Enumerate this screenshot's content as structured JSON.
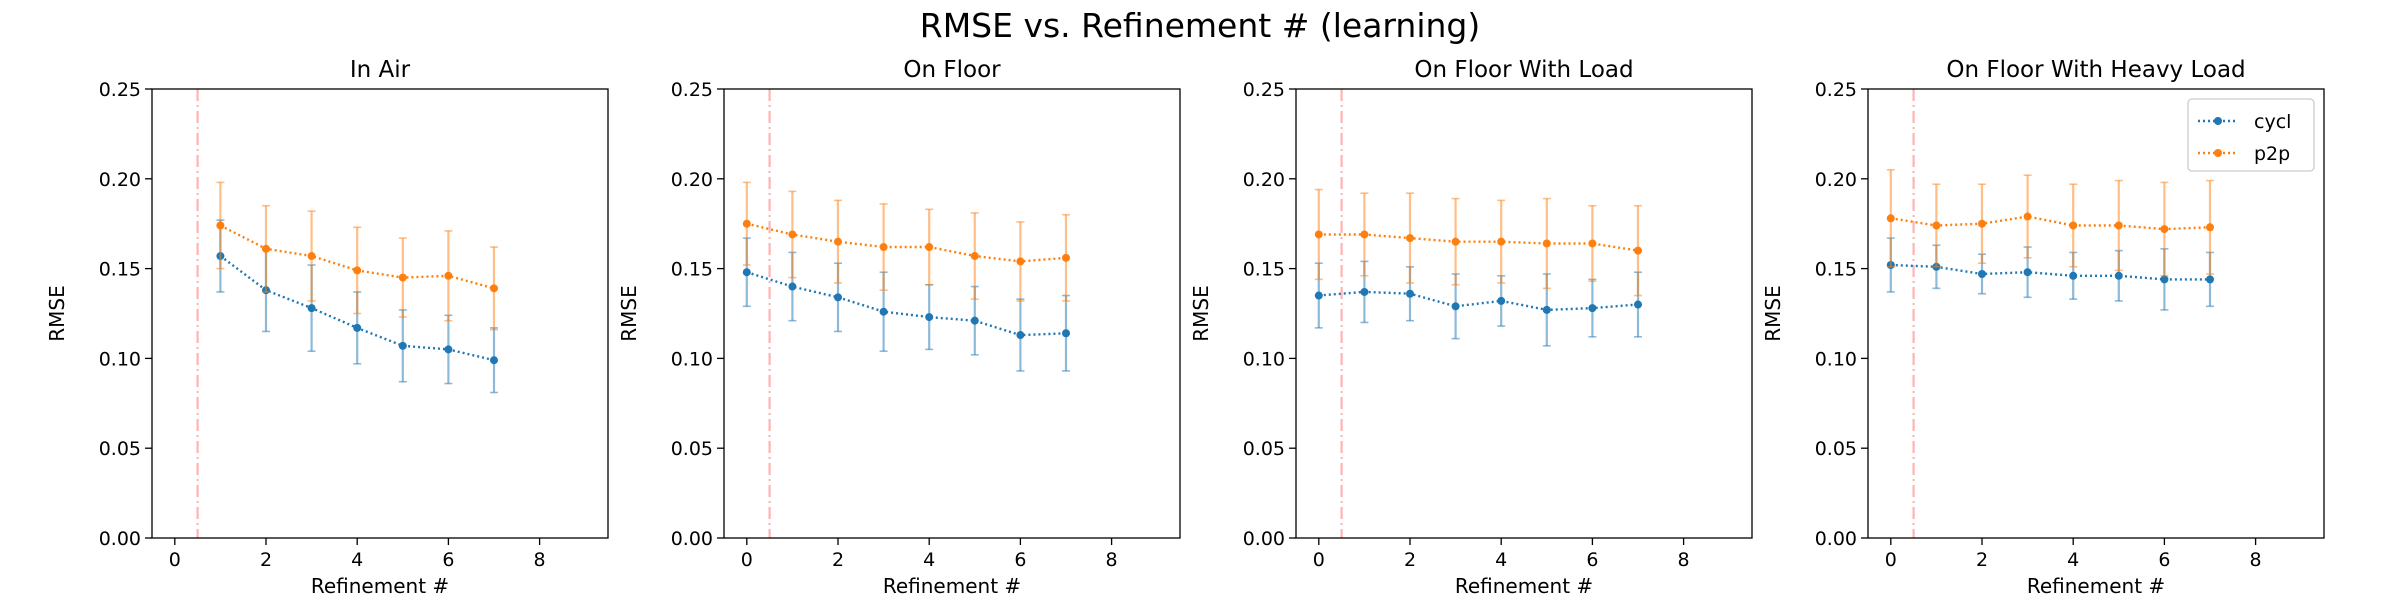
{
  "figure": {
    "title": "RMSE vs. Refinement # (learning)"
  },
  "colors": {
    "cycl": "#1f77b4",
    "p2p": "#ff7f0e",
    "vline": "#ffb3b3"
  },
  "chart_data": [
    {
      "type": "line",
      "title": "In Air",
      "xlabel": "Refinement #",
      "ylabel": "RMSE",
      "xlim": [
        -0.5,
        9.5
      ],
      "ylim": [
        0,
        0.25
      ],
      "xticks": [
        0,
        2,
        4,
        6,
        8
      ],
      "yticks": [
        0.0,
        0.05,
        0.1,
        0.15,
        0.2,
        0.25
      ],
      "vline_x": 0.5,
      "grid": false,
      "legend": null,
      "series": [
        {
          "name": "cycl",
          "x": [
            1,
            2,
            3,
            4,
            5,
            6,
            7
          ],
          "y": [
            0.157,
            0.138,
            0.128,
            0.117,
            0.107,
            0.105,
            0.099
          ],
          "err": [
            0.02,
            0.023,
            0.024,
            0.02,
            0.02,
            0.019,
            0.018
          ]
        },
        {
          "name": "p2p",
          "x": [
            1,
            2,
            3,
            4,
            5,
            6,
            7
          ],
          "y": [
            0.174,
            0.161,
            0.157,
            0.149,
            0.145,
            0.146,
            0.139
          ],
          "err": [
            0.024,
            0.024,
            0.025,
            0.024,
            0.022,
            0.025,
            0.023
          ]
        }
      ]
    },
    {
      "type": "line",
      "title": "On Floor",
      "xlabel": "Refinement #",
      "ylabel": "RMSE",
      "xlim": [
        -0.5,
        9.5
      ],
      "ylim": [
        0,
        0.25
      ],
      "xticks": [
        0,
        2,
        4,
        6,
        8
      ],
      "yticks": [
        0.0,
        0.05,
        0.1,
        0.15,
        0.2,
        0.25
      ],
      "vline_x": 0.5,
      "grid": false,
      "legend": null,
      "series": [
        {
          "name": "cycl",
          "x": [
            0,
            1,
            2,
            3,
            4,
            5,
            6,
            7
          ],
          "y": [
            0.148,
            0.14,
            0.134,
            0.126,
            0.123,
            0.121,
            0.113,
            0.114
          ],
          "err": [
            0.019,
            0.019,
            0.019,
            0.022,
            0.018,
            0.019,
            0.02,
            0.021
          ]
        },
        {
          "name": "p2p",
          "x": [
            0,
            1,
            2,
            3,
            4,
            5,
            6,
            7
          ],
          "y": [
            0.175,
            0.169,
            0.165,
            0.162,
            0.162,
            0.157,
            0.154,
            0.156
          ],
          "err": [
            0.023,
            0.024,
            0.023,
            0.024,
            0.021,
            0.024,
            0.022,
            0.024
          ]
        }
      ]
    },
    {
      "type": "line",
      "title": "On Floor With Load",
      "xlabel": "Refinement #",
      "ylabel": "RMSE",
      "xlim": [
        -0.5,
        9.5
      ],
      "ylim": [
        0,
        0.25
      ],
      "xticks": [
        0,
        2,
        4,
        6,
        8
      ],
      "yticks": [
        0.0,
        0.05,
        0.1,
        0.15,
        0.2,
        0.25
      ],
      "vline_x": 0.5,
      "grid": false,
      "legend": null,
      "series": [
        {
          "name": "cycl",
          "x": [
            0,
            1,
            2,
            3,
            4,
            5,
            6,
            7
          ],
          "y": [
            0.135,
            0.137,
            0.136,
            0.129,
            0.132,
            0.127,
            0.128,
            0.13
          ],
          "err": [
            0.018,
            0.017,
            0.015,
            0.018,
            0.014,
            0.02,
            0.016,
            0.018
          ]
        },
        {
          "name": "p2p",
          "x": [
            0,
            1,
            2,
            3,
            4,
            5,
            6,
            7
          ],
          "y": [
            0.169,
            0.169,
            0.167,
            0.165,
            0.165,
            0.164,
            0.164,
            0.16
          ],
          "err": [
            0.025,
            0.023,
            0.025,
            0.024,
            0.023,
            0.025,
            0.021,
            0.025
          ]
        }
      ]
    },
    {
      "type": "line",
      "title": "On Floor With Heavy Load",
      "xlabel": "Refinement #",
      "ylabel": "RMSE",
      "xlim": [
        -0.5,
        9.5
      ],
      "ylim": [
        0,
        0.25
      ],
      "xticks": [
        0,
        2,
        4,
        6,
        8
      ],
      "yticks": [
        0.0,
        0.05,
        0.1,
        0.15,
        0.2,
        0.25
      ],
      "vline_x": 0.5,
      "grid": false,
      "legend": "top-right",
      "series": [
        {
          "name": "cycl",
          "x": [
            0,
            1,
            2,
            3,
            4,
            5,
            6,
            7
          ],
          "y": [
            0.152,
            0.151,
            0.147,
            0.148,
            0.146,
            0.146,
            0.144,
            0.144
          ],
          "err": [
            0.015,
            0.012,
            0.011,
            0.014,
            0.013,
            0.014,
            0.017,
            0.015
          ]
        },
        {
          "name": "p2p",
          "x": [
            0,
            1,
            2,
            3,
            4,
            5,
            6,
            7
          ],
          "y": [
            0.178,
            0.174,
            0.175,
            0.179,
            0.174,
            0.174,
            0.172,
            0.173
          ],
          "err": [
            0.027,
            0.023,
            0.022,
            0.023,
            0.023,
            0.025,
            0.026,
            0.026
          ]
        }
      ]
    }
  ]
}
